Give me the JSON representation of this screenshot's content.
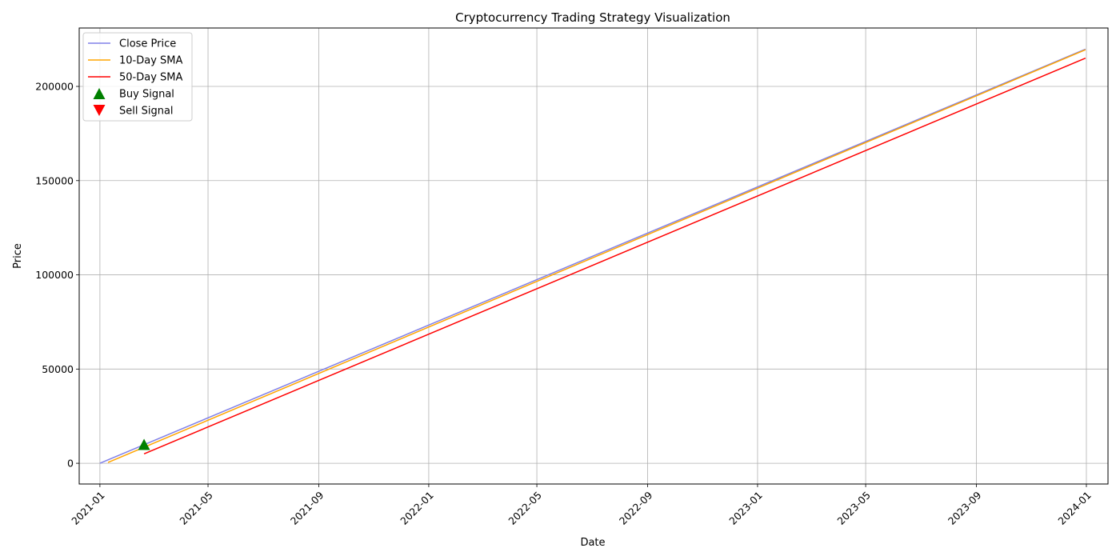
{
  "chart_data": {
    "type": "line",
    "title": "Cryptocurrency Trading Strategy Visualization",
    "xlabel": "Date",
    "ylabel": "Price",
    "grid": true,
    "legend_position": "top-left",
    "xlim": [
      "2020-12-09",
      "2024-01-25"
    ],
    "ylim": [
      -11000,
      231000
    ],
    "x_ticks": [
      "2021-01",
      "2021-05",
      "2021-09",
      "2022-01",
      "2022-05",
      "2022-09",
      "2023-01",
      "2023-05",
      "2023-09",
      "2024-01"
    ],
    "y_ticks": [
      0,
      50000,
      100000,
      150000,
      200000
    ],
    "series": [
      {
        "name": "Close Price",
        "color": "#8080e8",
        "x": [
          "2021-01-01",
          "2023-12-31"
        ],
        "y": [
          0,
          219800
        ]
      },
      {
        "name": "10-Day SMA",
        "color": "#ffa500",
        "x": [
          "2021-01-10",
          "2023-12-31"
        ],
        "y": [
          450,
          219450
        ]
      },
      {
        "name": "50-Day SMA",
        "color": "#ff0000",
        "x": [
          "2021-02-19",
          "2023-12-31"
        ],
        "y": [
          5000,
          215000
        ]
      }
    ],
    "markers": [
      {
        "name": "Buy Signal",
        "color": "#008000",
        "shape": "triangle-up",
        "points": [
          {
            "x": "2021-02-19",
            "y": 10000
          }
        ]
      },
      {
        "name": "Sell Signal",
        "color": "#ff0000",
        "shape": "triangle-down",
        "points": []
      }
    ]
  }
}
